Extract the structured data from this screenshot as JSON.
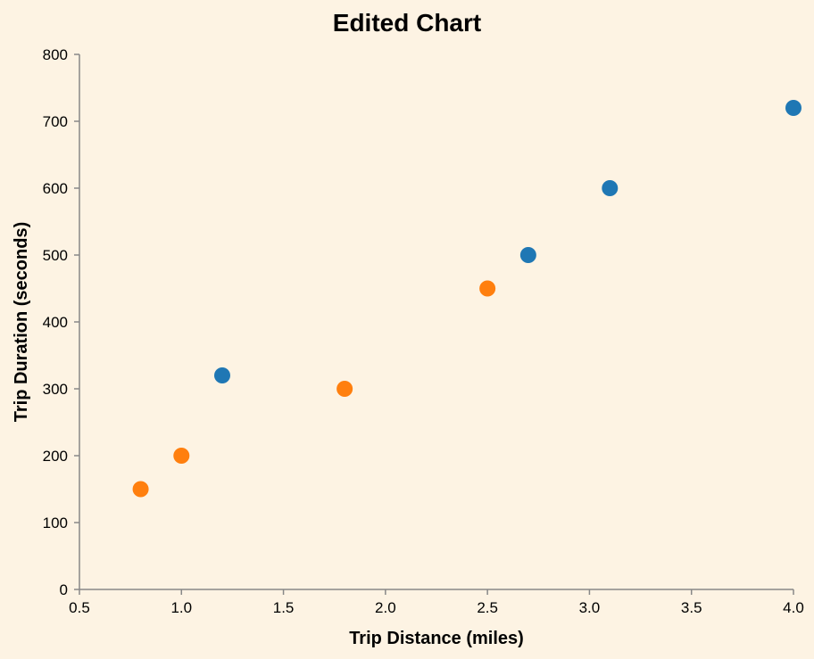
{
  "chart_data": {
    "type": "scatter",
    "title": "Edited Chart",
    "xlabel": "Trip Distance (miles)",
    "ylabel": "Trip Duration (seconds)",
    "xlim": [
      0.5,
      4.0
    ],
    "ylim": [
      0,
      800
    ],
    "x_ticks": [
      "0.5",
      "1.0",
      "1.5",
      "2.0",
      "2.5",
      "3.0",
      "3.5",
      "4.0"
    ],
    "y_ticks": [
      "0",
      "100",
      "200",
      "300",
      "400",
      "500",
      "600",
      "700",
      "800"
    ],
    "grid": false,
    "legend": "none",
    "background": "#fdf3e3",
    "series": [
      {
        "color": "#1f77b4",
        "points": [
          {
            "x": 1.2,
            "y": 320
          },
          {
            "x": 2.7,
            "y": 500
          },
          {
            "x": 3.1,
            "y": 600
          },
          {
            "x": 4.0,
            "y": 720
          }
        ]
      },
      {
        "color": "#ff7f0e",
        "points": [
          {
            "x": 0.8,
            "y": 150
          },
          {
            "x": 1.0,
            "y": 200
          },
          {
            "x": 1.8,
            "y": 300
          },
          {
            "x": 2.5,
            "y": 450
          }
        ]
      }
    ]
  }
}
